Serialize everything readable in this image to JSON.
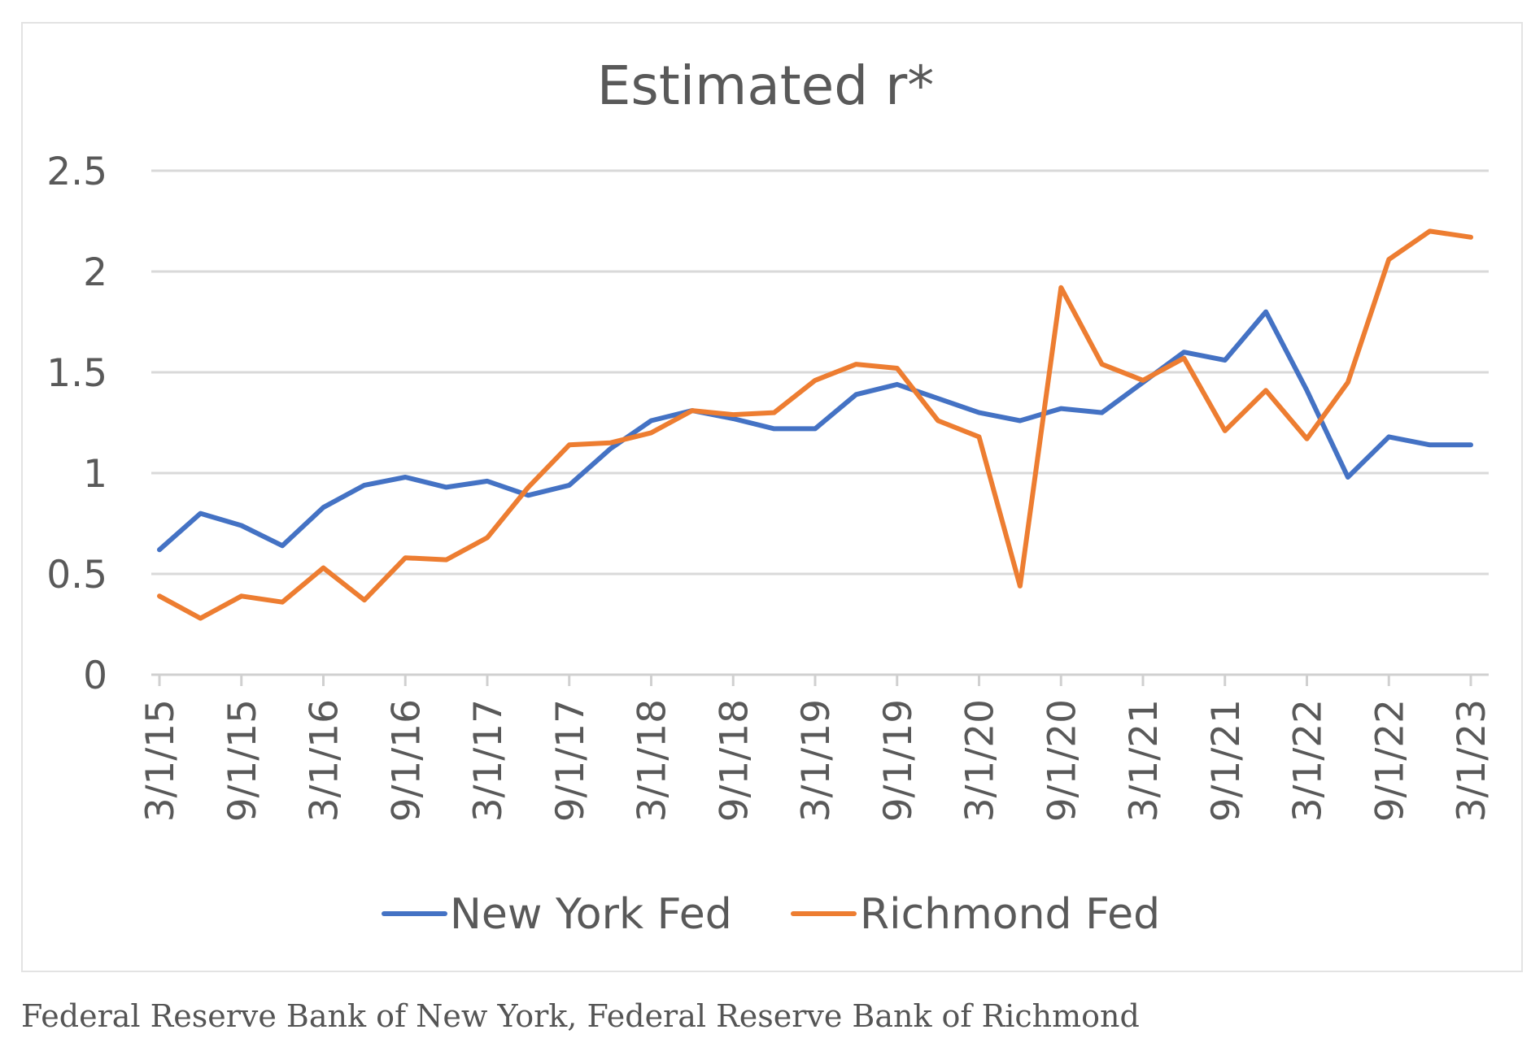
{
  "chart_data": {
    "type": "line",
    "title": "Estimated r*",
    "xlabel": "",
    "ylabel": "",
    "ylim": [
      0,
      2.5
    ],
    "yticks": [
      "0",
      "0.5",
      "1",
      "1.5",
      "2",
      "2.5"
    ],
    "x": [
      "3/1/15",
      "6/1/15",
      "9/1/15",
      "12/1/15",
      "3/1/16",
      "6/1/16",
      "9/1/16",
      "12/1/16",
      "3/1/17",
      "6/1/17",
      "9/1/17",
      "12/1/17",
      "3/1/18",
      "6/1/18",
      "9/1/18",
      "12/1/18",
      "3/1/19",
      "6/1/19",
      "9/1/19",
      "12/1/19",
      "3/1/20",
      "6/1/20",
      "9/1/20",
      "12/1/20",
      "3/1/21",
      "6/1/21",
      "9/1/21",
      "12/1/21",
      "3/1/22",
      "6/1/22",
      "9/1/22",
      "12/1/22",
      "3/1/23"
    ],
    "xtick_labels": [
      "3/1/15",
      "9/1/15",
      "3/1/16",
      "9/1/16",
      "3/1/17",
      "9/1/17",
      "3/1/18",
      "9/1/18",
      "3/1/19",
      "9/1/19",
      "3/1/20",
      "9/1/20",
      "3/1/21",
      "9/1/21",
      "3/1/22",
      "9/1/22",
      "3/1/23"
    ],
    "grid": true,
    "legend_position": "bottom",
    "series": [
      {
        "name": "New York Fed",
        "color": "#4472c4",
        "values": [
          0.62,
          0.8,
          0.74,
          0.64,
          0.83,
          0.94,
          0.98,
          0.93,
          0.96,
          0.89,
          0.94,
          1.12,
          1.26,
          1.31,
          1.27,
          1.22,
          1.22,
          1.39,
          1.44,
          1.37,
          1.3,
          1.26,
          1.32,
          1.3,
          1.45,
          1.6,
          1.56,
          1.8,
          1.41,
          0.98,
          1.18,
          1.14,
          1.14
        ]
      },
      {
        "name": "Richmond Fed",
        "color": "#ed7d31",
        "values": [
          0.39,
          0.28,
          0.39,
          0.36,
          0.53,
          0.37,
          0.58,
          0.57,
          0.68,
          0.93,
          1.14,
          1.15,
          1.2,
          1.31,
          1.29,
          1.3,
          1.46,
          1.54,
          1.52,
          1.26,
          1.18,
          0.44,
          1.92,
          1.54,
          1.46,
          1.57,
          1.21,
          1.41,
          1.17,
          1.45,
          2.06,
          2.2,
          2.17
        ]
      }
    ]
  },
  "source_caption": "Federal Reserve Bank of New York, Federal Reserve Bank of Richmond"
}
